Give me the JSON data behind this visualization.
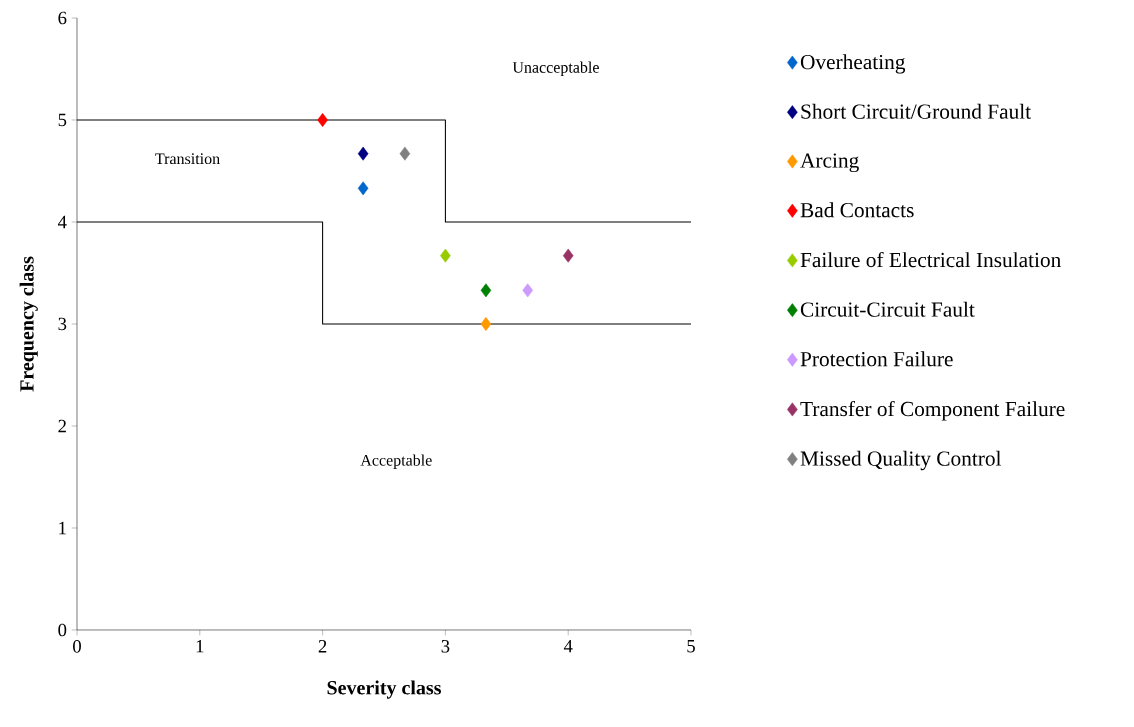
{
  "chart_data": {
    "type": "scatter",
    "xlabel": "Severity class",
    "ylabel": "Frequency class",
    "xlim": [
      0,
      5
    ],
    "ylim": [
      0,
      6
    ],
    "xticks": [
      0,
      1,
      2,
      3,
      4,
      5
    ],
    "yticks": [
      0,
      1,
      2,
      3,
      4,
      5,
      6
    ],
    "grid": false,
    "legend": "right",
    "series": [
      {
        "name": "Overheating",
        "color": "#0066cc",
        "marker": "diamond",
        "x": [
          2.33
        ],
        "values": [
          4.33
        ]
      },
      {
        "name": "Short Circuit/Ground Fault",
        "color": "#000080",
        "marker": "diamond",
        "x": [
          2.33
        ],
        "values": [
          4.67
        ]
      },
      {
        "name": "Arcing",
        "color": "#ff9900",
        "marker": "diamond",
        "x": [
          3.33
        ],
        "values": [
          3.0
        ]
      },
      {
        "name": "Bad Contacts",
        "color": "#ff0000",
        "marker": "diamond",
        "x": [
          2.0
        ],
        "values": [
          5.0
        ]
      },
      {
        "name": "Failure of Electrical Insulation",
        "color": "#99cc00",
        "marker": "diamond",
        "x": [
          3.0
        ],
        "values": [
          3.67
        ]
      },
      {
        "name": "Circuit-Circuit Fault",
        "color": "#008000",
        "marker": "diamond",
        "x": [
          3.33
        ],
        "values": [
          3.33
        ]
      },
      {
        "name": "Protection Failure",
        "color": "#cc99ff",
        "marker": "diamond",
        "x": [
          3.67
        ],
        "values": [
          3.33
        ]
      },
      {
        "name": "Transfer of Component Failure",
        "color": "#993366",
        "marker": "diamond",
        "x": [
          4.0
        ],
        "values": [
          3.67
        ]
      },
      {
        "name": "Missed Quality Control",
        "color": "#808080",
        "marker": "diamond",
        "x": [
          2.67
        ],
        "values": [
          4.67
        ]
      },
      {
        "type": "line",
        "color": "#000000",
        "marker": "none",
        "x": [
          0,
          3,
          3,
          5
        ],
        "values": [
          5,
          5,
          4,
          4
        ]
      },
      {
        "type": "line",
        "color": "#000000",
        "marker": "none",
        "x": [
          0,
          2,
          2,
          5
        ],
        "values": [
          4,
          4,
          3,
          3
        ]
      }
    ],
    "annotations": [
      "Unacceptable",
      "Transition",
      "Acceptable"
    ]
  }
}
